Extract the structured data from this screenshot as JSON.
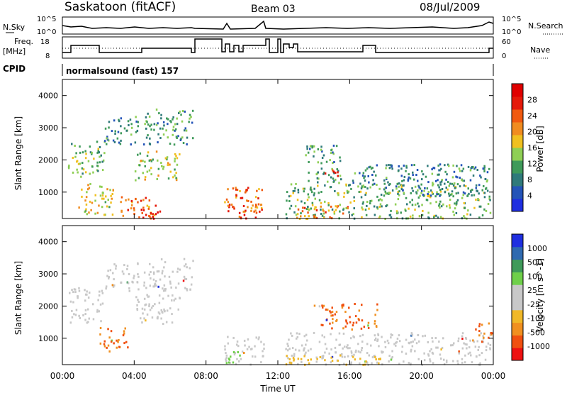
{
  "header": {
    "title": "Saskatoon (fitACF)",
    "beam": "Beam 03",
    "date": "08/Jul/2009"
  },
  "param_panels": {
    "nsky_label": "N.Sky",
    "nsky_ticks": [
      "10^5",
      "10^0"
    ],
    "nsearch_label": "N.Search",
    "nsearch_ticks": [
      "10^5",
      "10^0"
    ],
    "freq_label": [
      "Freq.",
      "[MHz]"
    ],
    "freq_ticks": [
      "18",
      "8"
    ],
    "nave_label": "Nave",
    "nave_ticks": [
      "60",
      "0"
    ],
    "cpid_label": "CPID",
    "cpid_value": "normalsound (fast) 157"
  },
  "colors": {
    "power": [
      "#1f2fe0",
      "#2454b8",
      "#2f7a7a",
      "#3f9a5a",
      "#8fcf55",
      "#f0c020",
      "#f08c20",
      "#f05a10",
      "#e51a0a",
      "#e00000"
    ],
    "velocity": [
      "#ee1111",
      "#f05010",
      "#f09020",
      "#f0b828",
      "#c8c8c8",
      "#c8c8c8",
      "#6fd04a",
      "#3f9a5a",
      "#2f6ab0",
      "#1f2fe0"
    ]
  },
  "chart_data": [
    {
      "type": "heatmap",
      "name": "power",
      "ylabel": "Slant Range [km]",
      "yticks": [
        "1000",
        "2000",
        "3000",
        "4000"
      ],
      "ylim": [
        180,
        4500
      ],
      "xlim": [
        0,
        24
      ],
      "colorbar_label": "Power [dB]",
      "colorbar_ticks": [
        "4",
        "8",
        "12",
        "16",
        "20",
        "24",
        "28"
      ],
      "colorbar_range": [
        0,
        30
      ],
      "gaps_hours": [
        [
          7.3,
          9.0
        ],
        [
          11.2,
          11.4
        ],
        [
          12.2,
          12.35
        ]
      ],
      "regions": [
        {
          "t0": 0.3,
          "t1": 2.3,
          "r0": 1500,
          "r1": 2600,
          "level": 12
        },
        {
          "t0": 0.8,
          "t1": 2.8,
          "r0": 300,
          "r1": 1300,
          "level": 16
        },
        {
          "t0": 2.3,
          "t1": 4.2,
          "r0": 2500,
          "r1": 3400,
          "level": 8
        },
        {
          "t0": 3.2,
          "t1": 5.2,
          "r0": 200,
          "r1": 900,
          "level": 22
        },
        {
          "t0": 4.0,
          "t1": 5.4,
          "r0": 200,
          "r1": 500,
          "level": 27
        },
        {
          "t0": 4.0,
          "t1": 6.5,
          "r0": 1400,
          "r1": 2300,
          "level": 14
        },
        {
          "t0": 4.5,
          "t1": 7.3,
          "r0": 2500,
          "r1": 3600,
          "level": 10
        },
        {
          "t0": 9.0,
          "t1": 11.2,
          "r0": 200,
          "r1": 1200,
          "level": 22
        },
        {
          "t0": 9.8,
          "t1": 11.0,
          "r0": 200,
          "r1": 500,
          "level": 26
        },
        {
          "t0": 12.4,
          "t1": 23.8,
          "r0": 200,
          "r1": 1300,
          "level": 12
        },
        {
          "t0": 13.0,
          "t1": 16.0,
          "r0": 200,
          "r1": 600,
          "level": 20
        },
        {
          "t0": 13.5,
          "t1": 15.5,
          "r0": 1300,
          "r1": 2500,
          "level": 10
        },
        {
          "t0": 14.5,
          "t1": 15.3,
          "r0": 1500,
          "r1": 1800,
          "level": 26
        },
        {
          "t0": 16.0,
          "t1": 23.8,
          "r0": 900,
          "r1": 1900,
          "level": 8
        }
      ]
    },
    {
      "type": "heatmap",
      "name": "velocity",
      "xlabel": "Time UT",
      "xticks": [
        "00:00",
        "04:00",
        "08:00",
        "12:00",
        "16:00",
        "20:00",
        "00:00"
      ],
      "ylabel": "Slant Range [km]",
      "yticks": [
        "1000",
        "2000",
        "3000",
        "4000"
      ],
      "ylim": [
        180,
        4500
      ],
      "xlim": [
        0,
        24
      ],
      "colorbar_label": "Velocity [m s^-1]",
      "colorbar_ticks": [
        "-1000",
        "-500",
        "-100",
        "-25",
        "25",
        "100",
        "500",
        "1000"
      ],
      "regions": [
        {
          "t0": 0.3,
          "t1": 2.3,
          "r0": 1500,
          "r1": 2600,
          "class": "gray"
        },
        {
          "t0": 2.0,
          "t1": 3.6,
          "r0": 600,
          "r1": 1400,
          "class": "orange"
        },
        {
          "t0": 2.3,
          "t1": 4.2,
          "r0": 2500,
          "r1": 3400,
          "class": "gray"
        },
        {
          "t0": 4.0,
          "t1": 6.5,
          "r0": 1400,
          "r1": 2400,
          "class": "gray"
        },
        {
          "t0": 4.5,
          "t1": 7.3,
          "r0": 2500,
          "r1": 3500,
          "class": "gray"
        },
        {
          "t0": 9.0,
          "t1": 11.2,
          "r0": 200,
          "r1": 1100,
          "class": "gray"
        },
        {
          "t0": 9.0,
          "t1": 10.0,
          "r0": 200,
          "r1": 600,
          "class": "green"
        },
        {
          "t0": 12.4,
          "t1": 23.8,
          "r0": 200,
          "r1": 1200,
          "class": "gray"
        },
        {
          "t0": 12.4,
          "t1": 18.0,
          "r0": 200,
          "r1": 500,
          "class": "yellow"
        },
        {
          "t0": 14.0,
          "t1": 17.5,
          "r0": 1300,
          "r1": 2100,
          "class": "orange"
        },
        {
          "t0": 22.8,
          "t1": 23.9,
          "r0": 900,
          "r1": 1500,
          "class": "orange"
        }
      ]
    }
  ]
}
